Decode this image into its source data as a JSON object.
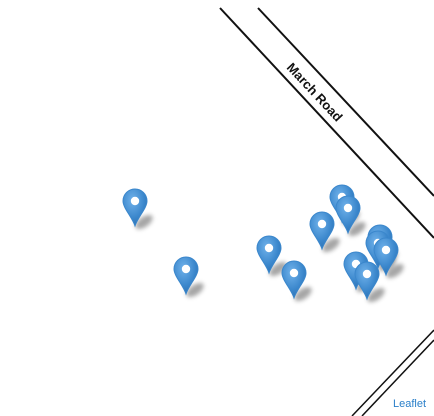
{
  "map": {
    "road_label": "March Road",
    "attribution": "Leaflet",
    "marker_icon": "map-pin-icon",
    "marker_color": "#3b87cc",
    "marker_count": 12
  }
}
